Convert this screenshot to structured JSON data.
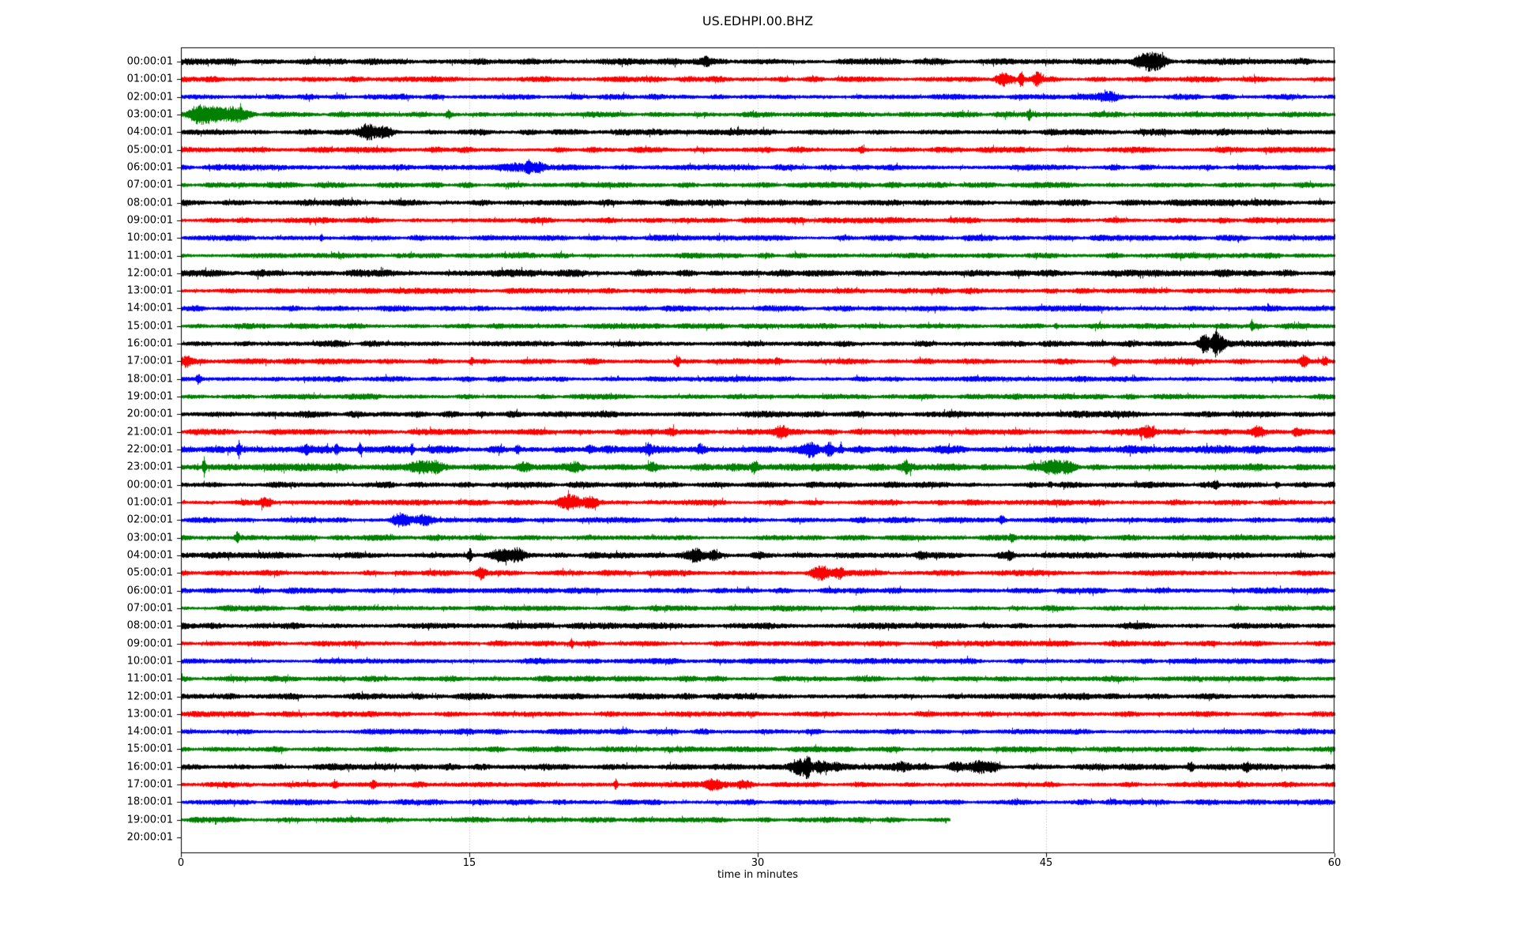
{
  "title": "US.EDHPI.00.BHZ",
  "xlabel": "time in minutes",
  "x_ticks": [
    "0",
    "15",
    "30",
    "45",
    "60"
  ],
  "colors": {
    "trace_cycle": [
      "#000000",
      "#ff0000",
      "#0000ff",
      "#008000"
    ],
    "grid": "#b0b0b0",
    "axis": "#000000",
    "background": "#ffffff"
  },
  "chart_data": {
    "type": "line",
    "subtype": "helicorder-dayplot",
    "station": "US.EDHPI.00.BHZ",
    "title": "US.EDHPI.00.BHZ",
    "xlabel": "time in minutes",
    "x_range_minutes": [
      0,
      60
    ],
    "x_tick_values": [
      0,
      15,
      30,
      45,
      60
    ],
    "interval_minutes": 60,
    "grid": "vertical-dotted-at-15-30-45",
    "legend": "none",
    "rows": [
      {
        "label": "00:00:01",
        "color": "#000000",
        "end": 60,
        "base": 1.15,
        "events": [
          [
            27.3,
            4,
            0.12
          ],
          [
            49.9,
            5,
            0.35
          ],
          [
            50.5,
            7,
            0.3
          ],
          [
            51.0,
            4,
            0.3
          ]
        ]
      },
      {
        "label": "01:00:01",
        "color": "#ff0000",
        "end": 60,
        "base": 1.0,
        "events": [
          [
            42.8,
            6,
            0.25
          ],
          [
            43.7,
            9,
            0.08
          ],
          [
            44.5,
            7,
            0.15
          ]
        ]
      },
      {
        "label": "02:00:01",
        "color": "#0000ff",
        "end": 60,
        "base": 1.0,
        "events": [
          [
            48.3,
            6,
            0.35
          ]
        ]
      },
      {
        "label": "03:00:01",
        "color": "#008000",
        "end": 60,
        "base": 1.0,
        "events": [
          [
            0.8,
            7,
            0.3
          ],
          [
            1.6,
            10,
            0.5
          ],
          [
            2.9,
            8,
            0.45
          ],
          [
            13.9,
            4,
            0.1
          ],
          [
            44.1,
            5,
            0.07
          ]
        ]
      },
      {
        "label": "04:00:01",
        "color": "#000000",
        "end": 60,
        "base": 1.1,
        "events": [
          [
            9.7,
            8,
            0.3
          ],
          [
            10.6,
            5,
            0.25
          ]
        ]
      },
      {
        "label": "05:00:01",
        "color": "#ff0000",
        "end": 60,
        "base": 1.0,
        "events": [
          [
            35.4,
            2.5,
            0.08
          ]
        ]
      },
      {
        "label": "06:00:01",
        "color": "#0000ff",
        "end": 60,
        "base": 1.0,
        "events": [
          [
            17.3,
            5,
            0.4
          ],
          [
            18.1,
            8,
            0.15
          ],
          [
            18.6,
            5,
            0.2
          ]
        ]
      },
      {
        "label": "07:00:01",
        "color": "#008000",
        "end": 60,
        "base": 1.0,
        "events": []
      },
      {
        "label": "08:00:01",
        "color": "#000000",
        "end": 60,
        "base": 1.1,
        "events": []
      },
      {
        "label": "09:00:01",
        "color": "#ff0000",
        "end": 60,
        "base": 1.0,
        "events": []
      },
      {
        "label": "10:00:01",
        "color": "#0000ff",
        "end": 60,
        "base": 1.0,
        "events": [
          [
            7.3,
            3,
            0.06
          ]
        ]
      },
      {
        "label": "11:00:01",
        "color": "#008000",
        "end": 60,
        "base": 1.0,
        "events": []
      },
      {
        "label": "12:00:01",
        "color": "#000000",
        "end": 60,
        "base": 1.25,
        "events": []
      },
      {
        "label": "13:00:01",
        "color": "#ff0000",
        "end": 60,
        "base": 1.05,
        "events": []
      },
      {
        "label": "14:00:01",
        "color": "#0000ff",
        "end": 60,
        "base": 1.0,
        "events": []
      },
      {
        "label": "15:00:01",
        "color": "#008000",
        "end": 60,
        "base": 1.0,
        "events": [
          [
            45.5,
            3,
            0.05
          ],
          [
            55.7,
            6,
            0.05
          ]
        ]
      },
      {
        "label": "16:00:01",
        "color": "#000000",
        "end": 60,
        "base": 1.1,
        "events": [
          [
            53.2,
            9,
            0.2
          ],
          [
            53.8,
            17,
            0.1
          ],
          [
            54.1,
            8,
            0.15
          ]
        ]
      },
      {
        "label": "17:00:01",
        "color": "#ff0000",
        "end": 60,
        "base": 1.05,
        "events": [
          [
            0.3,
            5,
            0.15
          ],
          [
            15.1,
            5,
            0.06
          ],
          [
            25.8,
            6,
            0.1
          ],
          [
            31.0,
            3,
            0.1
          ],
          [
            48.5,
            5,
            0.12
          ],
          [
            58.4,
            6,
            0.15
          ],
          [
            59.5,
            4,
            0.1
          ]
        ]
      },
      {
        "label": "18:00:01",
        "color": "#0000ff",
        "end": 60,
        "base": 1.0,
        "events": [
          [
            0.9,
            5,
            0.08
          ]
        ]
      },
      {
        "label": "19:00:01",
        "color": "#008000",
        "end": 60,
        "base": 1.0,
        "events": []
      },
      {
        "label": "20:00:01",
        "color": "#000000",
        "end": 60,
        "base": 1.15,
        "events": []
      },
      {
        "label": "21:00:01",
        "color": "#ff0000",
        "end": 60,
        "base": 1.05,
        "events": [
          [
            25.5,
            3,
            0.15
          ],
          [
            31.2,
            7,
            0.25
          ],
          [
            50.3,
            5,
            0.3
          ],
          [
            56.0,
            5,
            0.25
          ],
          [
            58.0,
            3,
            0.15
          ]
        ]
      },
      {
        "label": "22:00:01",
        "color": "#0000ff",
        "end": 60,
        "base": 1.35,
        "events": [
          [
            3.0,
            8,
            0.06
          ],
          [
            6.5,
            4,
            0.1
          ],
          [
            8.1,
            5,
            0.08
          ],
          [
            9.3,
            7,
            0.06
          ],
          [
            12.0,
            6,
            0.06
          ],
          [
            17.5,
            4,
            0.1
          ],
          [
            21.3,
            4,
            0.15
          ],
          [
            24.3,
            5,
            0.12
          ],
          [
            27.0,
            4,
            0.1
          ],
          [
            32.7,
            6,
            0.25
          ],
          [
            33.7,
            7,
            0.15
          ],
          [
            34.3,
            5,
            0.1
          ]
        ]
      },
      {
        "label": "23:00:01",
        "color": "#008000",
        "end": 60,
        "base": 1.3,
        "events": [
          [
            1.2,
            7,
            0.05
          ],
          [
            12.5,
            5,
            0.4
          ],
          [
            13.3,
            4,
            0.25
          ],
          [
            17.8,
            4,
            0.25
          ],
          [
            20.5,
            3,
            0.2
          ],
          [
            24.5,
            4,
            0.15
          ],
          [
            29.8,
            6,
            0.12
          ],
          [
            33.0,
            3,
            0.2
          ],
          [
            37.7,
            5,
            0.15
          ],
          [
            45.3,
            5,
            0.4
          ],
          [
            46.2,
            4,
            0.3
          ]
        ]
      },
      {
        "label": "00:00:01",
        "color": "#000000",
        "end": 60,
        "base": 1.05,
        "events": [
          [
            45.2,
            3,
            0.08
          ],
          [
            53.8,
            4,
            0.1
          ],
          [
            57.0,
            3,
            0.08
          ]
        ]
      },
      {
        "label": "01:00:01",
        "color": "#ff0000",
        "end": 60,
        "base": 1.0,
        "events": [
          [
            4.4,
            5,
            0.25
          ],
          [
            20.3,
            8,
            0.4
          ],
          [
            21.3,
            5,
            0.25
          ]
        ]
      },
      {
        "label": "02:00:01",
        "color": "#0000ff",
        "end": 60,
        "base": 1.0,
        "events": [
          [
            11.4,
            6,
            0.3
          ],
          [
            12.7,
            5,
            0.35
          ],
          [
            42.7,
            5,
            0.12
          ]
        ]
      },
      {
        "label": "03:00:01",
        "color": "#008000",
        "end": 60,
        "base": 1.0,
        "events": [
          [
            2.9,
            6,
            0.08
          ],
          [
            43.2,
            4,
            0.08
          ]
        ]
      },
      {
        "label": "04:00:01",
        "color": "#000000",
        "end": 60,
        "base": 1.1,
        "events": [
          [
            15.0,
            7,
            0.08
          ],
          [
            16.6,
            6,
            0.3
          ],
          [
            17.5,
            7,
            0.25
          ],
          [
            26.8,
            7,
            0.3
          ],
          [
            27.7,
            5,
            0.2
          ],
          [
            30.0,
            3,
            0.2
          ],
          [
            38.5,
            4,
            0.2
          ],
          [
            43.1,
            4,
            0.15
          ]
        ]
      },
      {
        "label": "05:00:01",
        "color": "#ff0000",
        "end": 60,
        "base": 1.0,
        "events": [
          [
            15.6,
            6,
            0.15
          ],
          [
            33.3,
            8,
            0.3
          ],
          [
            34.2,
            6,
            0.2
          ]
        ]
      },
      {
        "label": "06:00:01",
        "color": "#0000ff",
        "end": 60,
        "base": 1.0,
        "events": []
      },
      {
        "label": "07:00:01",
        "color": "#008000",
        "end": 60,
        "base": 1.0,
        "events": []
      },
      {
        "label": "08:00:01",
        "color": "#000000",
        "end": 60,
        "base": 1.1,
        "events": []
      },
      {
        "label": "09:00:01",
        "color": "#ff0000",
        "end": 60,
        "base": 1.0,
        "events": [
          [
            20.3,
            4,
            0.06
          ]
        ]
      },
      {
        "label": "10:00:01",
        "color": "#0000ff",
        "end": 60,
        "base": 1.0,
        "events": []
      },
      {
        "label": "11:00:01",
        "color": "#008000",
        "end": 60,
        "base": 1.0,
        "events": []
      },
      {
        "label": "12:00:01",
        "color": "#000000",
        "end": 60,
        "base": 1.15,
        "events": []
      },
      {
        "label": "13:00:01",
        "color": "#ff0000",
        "end": 60,
        "base": 1.0,
        "events": []
      },
      {
        "label": "14:00:01",
        "color": "#0000ff",
        "end": 60,
        "base": 1.0,
        "events": []
      },
      {
        "label": "15:00:01",
        "color": "#008000",
        "end": 60,
        "base": 1.0,
        "events": []
      },
      {
        "label": "16:00:01",
        "color": "#000000",
        "end": 60,
        "base": 1.15,
        "events": [
          [
            32.1,
            8,
            0.25
          ],
          [
            32.6,
            13,
            0.1
          ],
          [
            33.3,
            6,
            0.25
          ],
          [
            34.0,
            4,
            0.2
          ],
          [
            37.5,
            4,
            0.25
          ],
          [
            40.3,
            5,
            0.3
          ],
          [
            41.5,
            6,
            0.35
          ],
          [
            42.3,
            4,
            0.2
          ],
          [
            52.5,
            5,
            0.15
          ],
          [
            55.4,
            4,
            0.12
          ]
        ]
      },
      {
        "label": "17:00:01",
        "color": "#ff0000",
        "end": 60,
        "base": 1.0,
        "events": [
          [
            8.0,
            3,
            0.1
          ],
          [
            10.0,
            5,
            0.08
          ],
          [
            22.6,
            6,
            0.06
          ],
          [
            27.7,
            5,
            0.3
          ],
          [
            29.3,
            4,
            0.25
          ]
        ]
      },
      {
        "label": "18:00:01",
        "color": "#0000ff",
        "end": 60,
        "base": 1.0,
        "events": []
      },
      {
        "label": "19:00:01",
        "color": "#008000",
        "end": 40,
        "base": 1.0,
        "events": []
      },
      {
        "label": "20:00:01",
        "color": "#000000",
        "end": 0,
        "base": 1.0,
        "events": []
      }
    ]
  }
}
